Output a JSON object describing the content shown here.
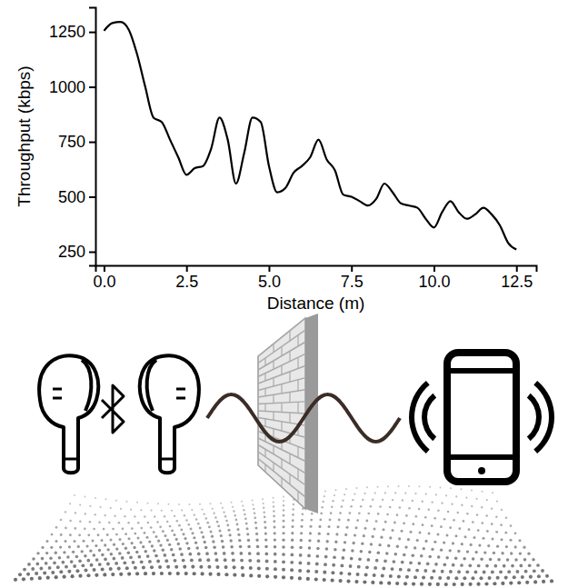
{
  "chart_data": {
    "type": "line",
    "xlabel": "Distance (m)",
    "ylabel": "Throughput (kbps)",
    "color": "#000000",
    "x": [
      0.0,
      0.25,
      0.5,
      0.75,
      1.0,
      1.25,
      1.5,
      1.75,
      2.0,
      2.25,
      2.5,
      2.75,
      3.0,
      3.25,
      3.5,
      3.75,
      4.0,
      4.25,
      4.5,
      4.75,
      5.0,
      5.25,
      5.5,
      5.75,
      6.0,
      6.25,
      6.5,
      6.75,
      7.0,
      7.25,
      7.5,
      7.75,
      8.0,
      8.25,
      8.5,
      8.75,
      9.0,
      9.25,
      9.5,
      9.75,
      10.0,
      10.25,
      10.5,
      10.75,
      11.0,
      11.25,
      11.5,
      11.75,
      12.0,
      12.25,
      12.5
    ],
    "values": [
      1255,
      1290,
      1295,
      1260,
      1150,
      1000,
      860,
      840,
      760,
      680,
      600,
      630,
      640,
      720,
      860,
      760,
      560,
      700,
      860,
      840,
      640,
      520,
      540,
      610,
      640,
      680,
      760,
      670,
      620,
      510,
      500,
      480,
      460,
      490,
      560,
      520,
      470,
      460,
      450,
      400,
      360,
      430,
      480,
      430,
      400,
      420,
      450,
      420,
      370,
      290,
      260
    ],
    "xlim": [
      -0.26,
      13.1
    ],
    "ylim": [
      188,
      1362
    ],
    "xticks": [
      {
        "value": 0,
        "label": "0.0"
      },
      {
        "value": 2.5,
        "label": "2.5"
      },
      {
        "value": 5,
        "label": "5.0"
      },
      {
        "value": 7.5,
        "label": "7.5"
      },
      {
        "value": 10,
        "label": "10.0"
      },
      {
        "value": 12.5,
        "label": "12.5"
      }
    ],
    "yticks": [
      250,
      500,
      750,
      1000,
      1250
    ],
    "grid": false
  }
}
